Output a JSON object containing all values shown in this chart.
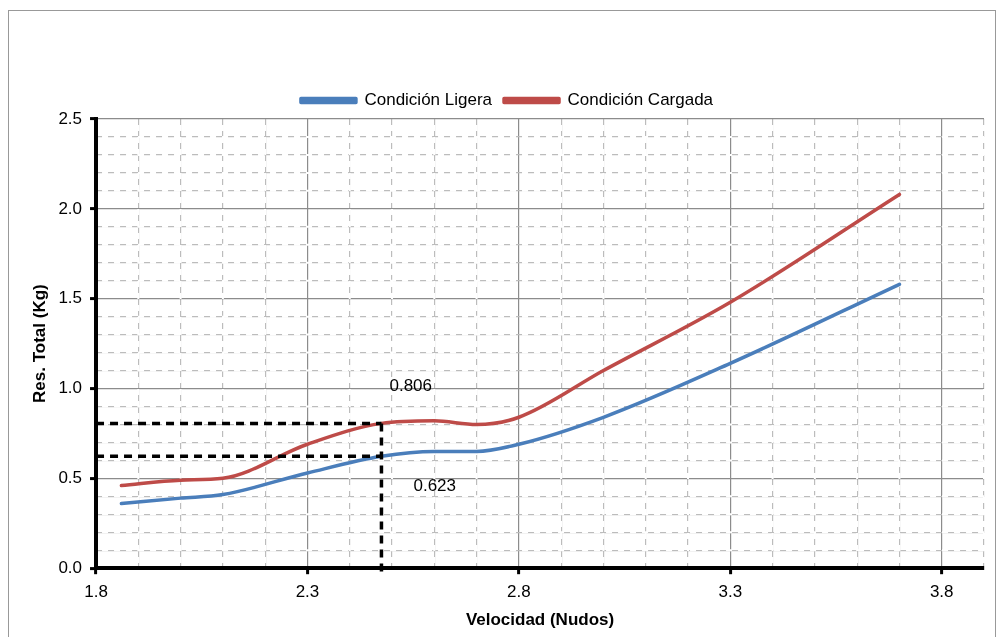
{
  "chart_data": {
    "type": "line",
    "xlabel": "Velocidad (Nudos)",
    "ylabel": "Res. Total (Kg)",
    "xlim": [
      1.8,
      3.9
    ],
    "xticks": [
      1.8,
      {
        "value": 1.9,
        "label": null
      },
      {
        "value": 2.0,
        "label": null
      },
      {
        "value": 2.1,
        "label": null
      },
      {
        "value": 2.2,
        "label": null
      },
      2.3,
      {
        "value": 2.4,
        "label": null
      },
      {
        "value": 2.5,
        "label": null
      },
      {
        "value": 2.6,
        "label": null
      },
      {
        "value": 2.7,
        "label": null
      },
      2.8,
      {
        "value": 2.9,
        "label": null
      },
      {
        "value": 3.0,
        "label": null
      },
      {
        "value": 3.1,
        "label": null
      },
      {
        "value": 3.2,
        "label": null
      },
      3.3,
      {
        "value": 3.4,
        "label": null
      },
      {
        "value": 3.5,
        "label": null
      },
      {
        "value": 3.6,
        "label": null
      },
      {
        "value": 3.7,
        "label": null
      },
      3.8,
      {
        "value": 3.9,
        "label": null
      }
    ],
    "ylim": [
      0,
      2.5
    ],
    "yticks": [
      {
        "value": 0,
        "label": "0.0"
      },
      {
        "value": 0.1,
        "label": null
      },
      {
        "value": 0.2,
        "label": null
      },
      {
        "value": 0.3,
        "label": null
      },
      {
        "value": 0.4,
        "label": null
      },
      0.5,
      {
        "value": 0.6,
        "label": null
      },
      {
        "value": 0.7,
        "label": null
      },
      {
        "value": 0.8,
        "label": null
      },
      {
        "value": 0.9,
        "label": null
      },
      {
        "value": 1,
        "label": "1.0"
      },
      {
        "value": 1.1,
        "label": null
      },
      {
        "value": 1.2,
        "label": null
      },
      {
        "value": 1.3,
        "label": null
      },
      {
        "value": 1.4,
        "label": null
      },
      1.5,
      {
        "value": 1.6,
        "label": null
      },
      {
        "value": 1.7,
        "label": null
      },
      {
        "value": 1.8,
        "label": null
      },
      {
        "value": 1.9,
        "label": null
      },
      {
        "value": 2,
        "label": "2.0"
      },
      {
        "value": 2.1,
        "label": null
      },
      {
        "value": 2.2,
        "label": null
      },
      {
        "value": 2.3,
        "label": null
      },
      {
        "value": 2.4,
        "label": null
      },
      2.5
    ],
    "x": [
      1.86,
      2.0,
      2.1,
      2.3,
      2.475,
      2.6,
      2.7,
      2.8,
      3.0,
      3.3,
      3.7
    ],
    "series": [
      {
        "name": "Condición Ligera",
        "color": "#4a7ebb",
        "values": [
          0.36,
          0.39,
          0.41,
          0.53,
          0.623,
          0.65,
          0.65,
          0.69,
          0.84,
          1.14,
          1.58
        ]
      },
      {
        "name": "Condición Cargada",
        "color": "#be4b48",
        "values": [
          0.46,
          0.49,
          0.5,
          0.69,
          0.806,
          0.82,
          0.8,
          0.84,
          1.1,
          1.48,
          2.08
        ]
      }
    ],
    "ref_lines": [
      {
        "axis": "y",
        "value": 0.806,
        "label": "0.806",
        "color": "#000000",
        "line_style": "dashed"
      },
      {
        "axis": "y",
        "value": 0.623,
        "label": "0.623",
        "color": "#000000",
        "line_style": "dashed"
      },
      {
        "axis": "x",
        "value": 2.475,
        "color": "#000000",
        "line_style": "dashed"
      }
    ],
    "grid": true,
    "legend": "top",
    "marker": "none",
    "line_style": "solid"
  }
}
